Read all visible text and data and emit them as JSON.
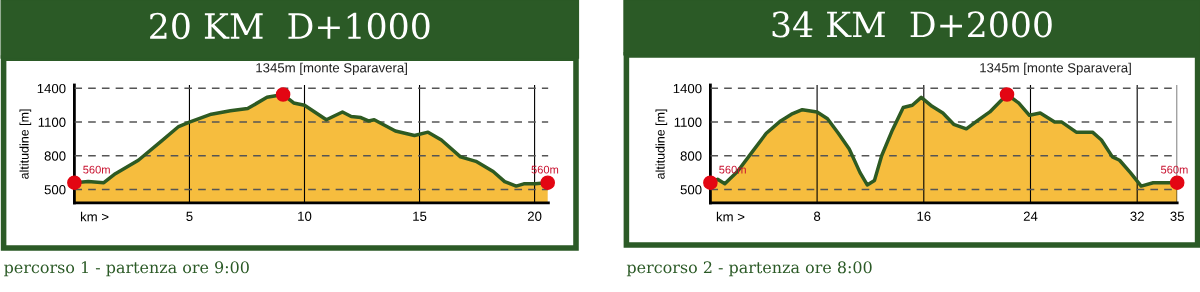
{
  "chart_data": [
    {
      "type": "area",
      "title": "20 KM  D+1000",
      "xlabel": "km >",
      "ylabel": "altitudine [m]",
      "xlim": [
        0,
        20.6
      ],
      "ylim": [
        380,
        1430
      ],
      "xticks": [
        5,
        10,
        15,
        20
      ],
      "yticks": [
        500,
        800,
        1100,
        1400
      ],
      "grid": true,
      "legend": false,
      "series": [
        {
          "color": "#2e5a22",
          "x": [
            0,
            0.6,
            1.28,
            1.78,
            2.78,
            3.78,
            4.53,
            5,
            5.95,
            6.78,
            7.53,
            8.37,
            9.07,
            9.53,
            10,
            10.95,
            11.65,
            12.03,
            12.45,
            12.78,
            13.03,
            13.95,
            14.78,
            15.37,
            15.95,
            16.78,
            17.45,
            18.2,
            18.7,
            19.2,
            19.53,
            20.03,
            20.57
          ],
          "values": [
            560,
            570,
            560,
            640,
            760,
            930,
            1060,
            1100,
            1170,
            1200,
            1220,
            1320,
            1345,
            1270,
            1250,
            1120,
            1190,
            1150,
            1140,
            1110,
            1120,
            1020,
            980,
            1010,
            940,
            790,
            750,
            660,
            570,
            530,
            550,
            550,
            560
          ]
        },
        {
          "type": "scatter",
          "color": "#e30613",
          "marker": "circle",
          "x": [
            0,
            9.07,
            20.57
          ],
          "values": [
            560,
            1345,
            560
          ]
        }
      ],
      "annotations": [
        {
          "text": "560m",
          "x": 0,
          "y": 560
        },
        {
          "text": "1345m [monte Sparavera]",
          "x": 9.07,
          "y": 1345
        },
        {
          "text": "560m",
          "x": 20.57,
          "y": 560
        },
        "percorso 1 - partenza ore 9:00"
      ]
    },
    {
      "type": "area",
      "title": "34 KM  D+2000",
      "xlabel": "km >",
      "ylabel": "altitudine [m]",
      "xlim": [
        0,
        35
      ],
      "ylim": [
        380,
        1430
      ],
      "xticks": [
        8,
        16,
        24,
        32,
        35
      ],
      "yticks": [
        500,
        800,
        1100,
        1400
      ],
      "grid": true,
      "legend": false,
      "series": [
        {
          "color": "#2e5a22",
          "x": [
            0,
            0.54,
            1.08,
            2.03,
            3.11,
            4.19,
            5.27,
            6.08,
            6.89,
            8,
            8.78,
            9.59,
            10.41,
            11.22,
            11.76,
            12.3,
            12.84,
            13.65,
            14.46,
            15.14,
            15.81,
            16.62,
            17.43,
            18.24,
            19.19,
            20,
            20.95,
            22.24,
            23.11,
            23.92,
            24.73,
            25.81,
            26.35,
            27.43,
            28.65,
            29.32,
            30.14,
            30.68,
            31.49,
            32.3,
            33.2,
            35
          ],
          "values": [
            560,
            590,
            550,
            660,
            830,
            1000,
            1110,
            1170,
            1210,
            1190,
            1130,
            1000,
            860,
            650,
            540,
            580,
            800,
            1030,
            1230,
            1250,
            1320,
            1240,
            1180,
            1080,
            1040,
            1110,
            1190,
            1345,
            1270,
            1160,
            1180,
            1100,
            1100,
            1010,
            1010,
            940,
            790,
            760,
            650,
            530,
            560,
            560
          ]
        },
        {
          "type": "scatter",
          "color": "#e30613",
          "marker": "circle",
          "x": [
            0,
            22.24,
            35
          ],
          "values": [
            560,
            1345,
            560
          ]
        }
      ],
      "annotations": [
        {
          "text": "560m",
          "x": 0,
          "y": 560
        },
        {
          "text": "1345m [monte Sparavera]",
          "x": 22.24,
          "y": 1345
        },
        {
          "text": "560m",
          "x": 35,
          "y": 560
        },
        "percorso 2 - partenza ore 8:00"
      ]
    }
  ]
}
